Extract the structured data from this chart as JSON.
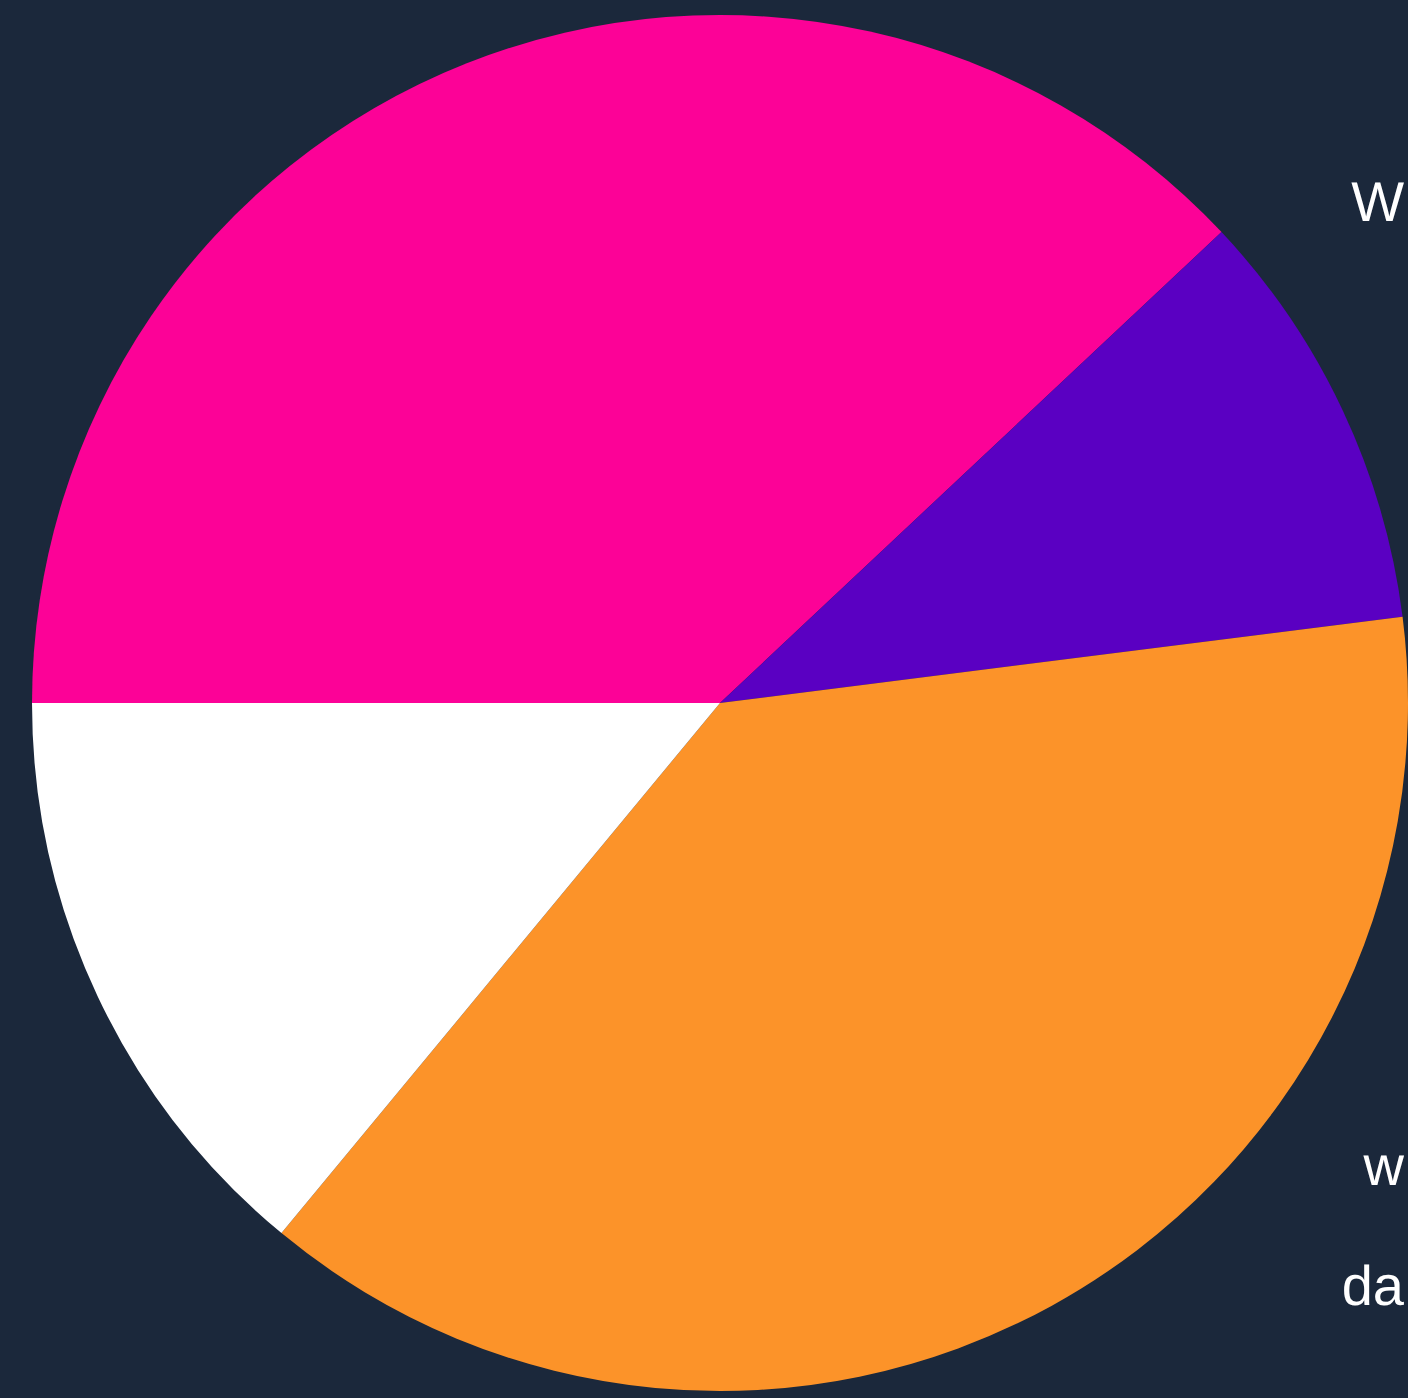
{
  "chart_data": {
    "type": "pie",
    "categories": [
      null,
      null,
      null,
      null
    ],
    "values": [
      38,
      10,
      38,
      14
    ],
    "colors": [
      "#fc0297",
      "#5a00c2",
      "#fc9329",
      "#ffffff"
    ],
    "annotations": [
      "W",
      "w",
      "da"
    ],
    "legend": false
  }
}
